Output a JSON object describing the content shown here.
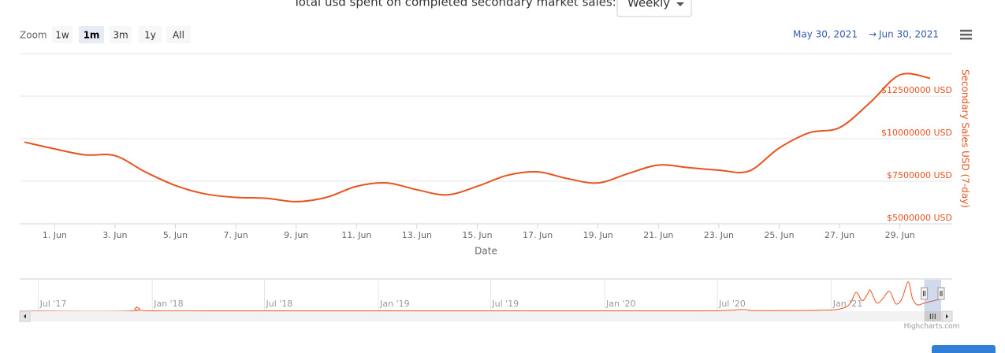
{
  "header": {
    "title": "Total usd spent on completed secondary market sales:",
    "dropdown": "Weekly"
  },
  "range_selector": {
    "zoom_label": "Zoom",
    "buttons": [
      "1w",
      "1m",
      "3m",
      "1y",
      "All"
    ],
    "selected": 1,
    "from": "May 30, 2021",
    "separator": "→",
    "to": "Jun 30, 2021"
  },
  "chart_data": [
    {
      "type": "line",
      "x_label": "Date",
      "y_label": "Secondary Sales USD (7-day)",
      "color": "#e8521e",
      "x": [
        "2021-05-31",
        "2021-06-01",
        "2021-06-02",
        "2021-06-03",
        "2021-06-04",
        "2021-06-05",
        "2021-06-06",
        "2021-06-07",
        "2021-06-08",
        "2021-06-09",
        "2021-06-10",
        "2021-06-11",
        "2021-06-12",
        "2021-06-13",
        "2021-06-14",
        "2021-06-15",
        "2021-06-16",
        "2021-06-17",
        "2021-06-18",
        "2021-06-19",
        "2021-06-20",
        "2021-06-21",
        "2021-06-22",
        "2021-06-23",
        "2021-06-24",
        "2021-06-25",
        "2021-06-26",
        "2021-06-27",
        "2021-06-28",
        "2021-06-29",
        "2021-06-30"
      ],
      "values": [
        9800000,
        9400000,
        9050000,
        9000000,
        8050000,
        7250000,
        6750000,
        6550000,
        6500000,
        6300000,
        6550000,
        7200000,
        7400000,
        7000000,
        6700000,
        7200000,
        7850000,
        8050000,
        7650000,
        7400000,
        7950000,
        8450000,
        8300000,
        8150000,
        8100000,
        9450000,
        10350000,
        10650000,
        12100000,
        13750000,
        13550000
      ],
      "xlim": [
        "2021-05-31",
        "2021-06-30"
      ],
      "xticks": [
        {
          "value": "2021-06-01",
          "label": "1. Jun"
        },
        {
          "value": "2021-06-03",
          "label": "3. Jun"
        },
        {
          "value": "2021-06-05",
          "label": "5. Jun"
        },
        {
          "value": "2021-06-07",
          "label": "7. Jun"
        },
        {
          "value": "2021-06-09",
          "label": "9. Jun"
        },
        {
          "value": "2021-06-11",
          "label": "11. Jun"
        },
        {
          "value": "2021-06-13",
          "label": "13. Jun"
        },
        {
          "value": "2021-06-15",
          "label": "15. Jun"
        },
        {
          "value": "2021-06-17",
          "label": "17. Jun"
        },
        {
          "value": "2021-06-19",
          "label": "19. Jun"
        },
        {
          "value": "2021-06-21",
          "label": "21. Jun"
        },
        {
          "value": "2021-06-23",
          "label": "23. Jun"
        },
        {
          "value": "2021-06-25",
          "label": "25. Jun"
        },
        {
          "value": "2021-06-27",
          "label": "27. Jun"
        },
        {
          "value": "2021-06-29",
          "label": "29. Jun"
        }
      ],
      "ylim": [
        5000000,
        15000000
      ],
      "yticks": [
        {
          "value": 5000000,
          "label": "$5000000 USD"
        },
        {
          "value": 7500000,
          "label": "$7500000 USD"
        },
        {
          "value": 10000000,
          "label": "$10000000 USD"
        },
        {
          "value": 12500000,
          "label": "$12500000 USD"
        }
      ],
      "grid": true
    },
    {
      "type": "navigator",
      "color": "#e8521e",
      "x": [
        "2017-06-01",
        "2017-11-25",
        "2017-12-07",
        "2017-12-20",
        "2018-06-01",
        "2019-06-01",
        "2020-06-01",
        "2020-08-10",
        "2020-09-01",
        "2020-12-20",
        "2021-01-20",
        "2021-02-01",
        "2021-02-10",
        "2021-02-20",
        "2021-03-01",
        "2021-03-05",
        "2021-03-15",
        "2021-03-25",
        "2021-04-05",
        "2021-04-15",
        "2021-04-25",
        "2021-05-05",
        "2021-05-12",
        "2021-05-20",
        "2021-06-01",
        "2021-06-30"
      ],
      "values": [
        100000,
        100000,
        2000000,
        300000,
        200000,
        200000,
        200000,
        800000,
        300000,
        500000,
        1500000,
        4000000,
        9000000,
        5000000,
        8500000,
        10000000,
        4000000,
        6000000,
        9500000,
        3500000,
        6000000,
        14000000,
        6000000,
        3000000,
        4000000,
        6000000
      ],
      "xlim": [
        "2017-06-01",
        "2021-07-15"
      ],
      "xticks": [
        {
          "value": "2017-07-01",
          "label": "Jul '17"
        },
        {
          "value": "2018-01-01",
          "label": "Jan '18"
        },
        {
          "value": "2018-07-01",
          "label": "Jul '18"
        },
        {
          "value": "2019-01-01",
          "label": "Jan '19"
        },
        {
          "value": "2019-07-01",
          "label": "Jul '19"
        },
        {
          "value": "2020-01-01",
          "label": "Jan '20"
        },
        {
          "value": "2020-07-01",
          "label": "Jul '20"
        },
        {
          "value": "2021-01-01",
          "label": "Jan '21"
        }
      ],
      "ylim": [
        0,
        15000000
      ]
    }
  ],
  "credits": "Highcharts.com"
}
